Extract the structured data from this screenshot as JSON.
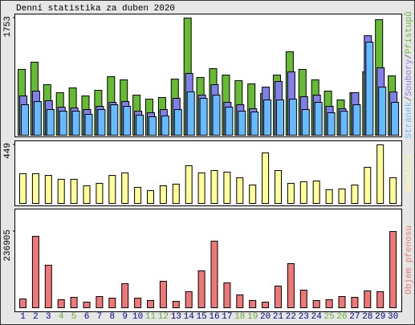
{
  "chart_data": [
    {
      "type": "bar",
      "title": "Denní statistika za duben 2020",
      "ylim": [
        0,
        1753
      ],
      "yticks": [
        1753
      ],
      "legend_separator": "/",
      "series": [
        {
          "name": "Stránek",
          "color": "#66bbff",
          "values": [
            456,
            504,
            384,
            360,
            360,
            312,
            384,
            456,
            432,
            300,
            276,
            288,
            384,
            648,
            552,
            600,
            420,
            360,
            348,
            528,
            528,
            540,
            384,
            492,
            336,
            360,
            456,
            1393,
            720,
            492
          ]
        },
        {
          "name": "Soubory",
          "color": "#8080e8",
          "values": [
            588,
            660,
            516,
            420,
            408,
            384,
            432,
            492,
            504,
            360,
            336,
            384,
            552,
            924,
            600,
            756,
            492,
            456,
            396,
            720,
            804,
            948,
            576,
            600,
            432,
            396,
            636,
            1489,
            1009,
            648
          ]
        },
        {
          "name": "Přístupů",
          "color": "#66bb33",
          "values": [
            985,
            1093,
            756,
            636,
            708,
            588,
            672,
            876,
            828,
            600,
            540,
            564,
            840,
            1753,
            864,
            996,
            900,
            816,
            768,
            624,
            900,
            1249,
            985,
            828,
            660,
            528,
            636,
            948,
            1729,
            888
          ]
        }
      ]
    },
    {
      "type": "bar",
      "ylim": [
        0,
        449
      ],
      "yticks": [
        449
      ],
      "series": [
        {
          "name": "Návštěv",
          "color": "#ffff99",
          "values": [
            228,
            228,
            215,
            185,
            185,
            135,
            154,
            215,
            234,
            123,
            98,
            135,
            148,
            289,
            234,
            252,
            240,
            197,
            141,
            387,
            252,
            154,
            166,
            172,
            105,
            111,
            141,
            277,
            449,
            197
          ]
        }
      ]
    },
    {
      "type": "bar",
      "ylim": [
        0,
        236905
      ],
      "yticks": [
        236905
      ],
      "categories": [
        "1",
        "2",
        "3",
        "4",
        "5",
        "6",
        "7",
        "8",
        "9",
        "10",
        "11",
        "12",
        "13",
        "14",
        "15",
        "16",
        "17",
        "18",
        "19",
        "20",
        "21",
        "22",
        "23",
        "24",
        "25",
        "26",
        "27",
        "28",
        "29",
        "30"
      ],
      "category_colors": [
        "#000080",
        "#000080",
        "#000080",
        "#66aa33",
        "#66aa33",
        "#000080",
        "#000080",
        "#000080",
        "#000080",
        "#000080",
        "#66aa33",
        "#66aa33",
        "#000080",
        "#000080",
        "#000080",
        "#000080",
        "#000080",
        "#66aa33",
        "#66aa33",
        "#000080",
        "#000080",
        "#000080",
        "#000080",
        "#000080",
        "#66aa33",
        "#66aa33",
        "#000080",
        "#000080",
        "#000080",
        "#000080"
      ],
      "series": [
        {
          "name": "Objem přenosu",
          "color": "#ee7777",
          "values": [
            27431,
            221941,
            132165,
            24937,
            32418,
            17456,
            34912,
            29924,
            74810,
            29924,
            22443,
            82291,
            19950,
            49873,
            114708,
            206979,
            77304,
            39899,
            22443,
            17456,
            67329,
            137152,
            54861,
            22443,
            24937,
            34912,
            32418,
            52367,
            49873,
            236905
          ]
        }
      ]
    }
  ]
}
